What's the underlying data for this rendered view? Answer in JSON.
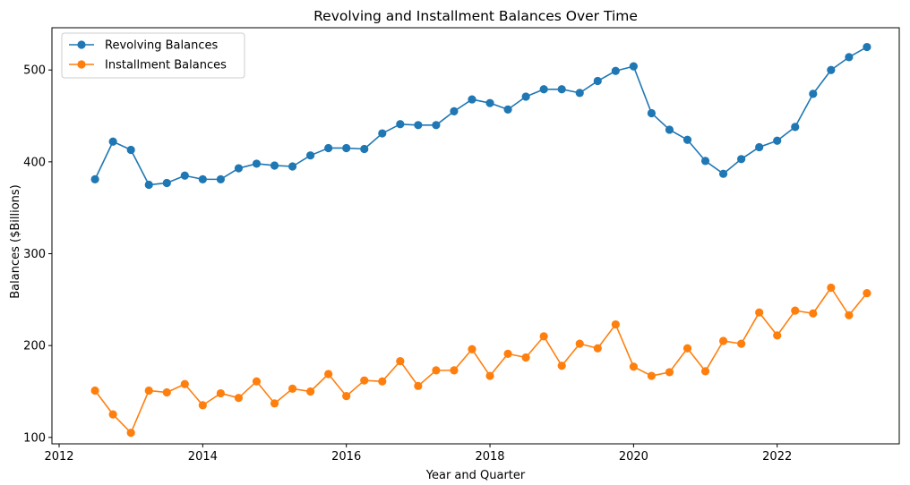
{
  "chart_data": {
    "type": "line",
    "title": "Revolving and Installment Balances Over Time",
    "xlabel": "Year and Quarter",
    "ylabel": "Balances ($Billions)",
    "xlim": [
      2011.9,
      2023.7
    ],
    "ylim": [
      93,
      546
    ],
    "xticks": [
      2012,
      2014,
      2016,
      2018,
      2020,
      2022
    ],
    "yticks": [
      100,
      200,
      300,
      400,
      500
    ],
    "grid": false,
    "legend_position": "top-left",
    "x": [
      2012.5,
      2012.75,
      2013.0,
      2013.25,
      2013.5,
      2013.75,
      2014.0,
      2014.25,
      2014.5,
      2014.75,
      2015.0,
      2015.25,
      2015.5,
      2015.75,
      2016.0,
      2016.25,
      2016.5,
      2016.75,
      2017.0,
      2017.25,
      2017.5,
      2017.75,
      2018.0,
      2018.25,
      2018.5,
      2018.75,
      2019.0,
      2019.25,
      2019.5,
      2019.75,
      2020.0,
      2020.25,
      2020.5,
      2020.75,
      2021.0,
      2021.25,
      2021.5,
      2021.75,
      2022.0,
      2022.25,
      2022.5,
      2022.75,
      2023.0,
      2023.25
    ],
    "series": [
      {
        "name": "Revolving Balances",
        "color": "#1f77b4",
        "values": [
          381,
          422,
          413,
          375,
          377,
          385,
          381,
          381,
          393,
          398,
          396,
          395,
          407,
          415,
          415,
          414,
          431,
          441,
          440,
          440,
          455,
          468,
          464,
          457,
          471,
          479,
          479,
          475,
          488,
          499,
          504,
          453,
          435,
          424,
          401,
          387,
          403,
          416,
          423,
          438,
          474,
          500,
          514,
          525
        ]
      },
      {
        "name": "Installment Balances",
        "color": "#ff7f0e",
        "values": [
          151,
          125,
          105,
          151,
          149,
          158,
          135,
          148,
          143,
          161,
          137,
          153,
          150,
          169,
          145,
          162,
          161,
          183,
          156,
          173,
          173,
          196,
          167,
          191,
          187,
          210,
          178,
          202,
          197,
          223,
          177,
          167,
          171,
          197,
          172,
          205,
          202,
          236,
          211,
          238,
          235,
          263,
          233,
          257
        ]
      }
    ]
  }
}
